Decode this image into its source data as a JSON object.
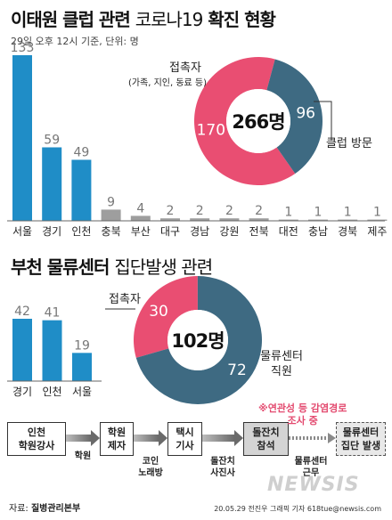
{
  "header": {
    "title_bold": "이태원 클럽 관련",
    "title_light": "코로나19",
    "title_bold2": "확진 현황",
    "subtitle": "29일 오후 12시 기준, 단위: 명"
  },
  "chart_data": [
    {
      "type": "bar",
      "categories": [
        "서울",
        "경기",
        "인천",
        "충북",
        "부산",
        "대구",
        "경남",
        "강원",
        "전북",
        "대전",
        "충남",
        "경북",
        "제주"
      ],
      "values": [
        133,
        59,
        49,
        9,
        4,
        2,
        2,
        2,
        2,
        1,
        1,
        1,
        1
      ],
      "highlight_count": 3,
      "colors": {
        "highlight": "#1f8dc7",
        "other": "#9e9e9e"
      }
    },
    {
      "type": "pie",
      "total_label": "266명",
      "slices": [
        {
          "label": "접촉자",
          "sub_label": "(가족, 지인, 동료 등)",
          "value": 170,
          "color": "#e94e72"
        },
        {
          "label": "클럽 방문",
          "value": 96,
          "color": "#3e6a82"
        }
      ]
    },
    {
      "type": "bar",
      "categories": [
        "경기",
        "인천",
        "서울"
      ],
      "values": [
        42,
        41,
        19
      ],
      "color": "#1f8dc7"
    },
    {
      "type": "pie",
      "total_label": "102명",
      "slices": [
        {
          "label": "접촉자",
          "value": 30,
          "color": "#e94e72"
        },
        {
          "label": "물류센터\n직원",
          "value": 72,
          "color": "#3e6a82"
        }
      ]
    }
  ],
  "section2": {
    "title_bold": "부천 물류센터",
    "title_light": "집단발생 관련"
  },
  "flow": {
    "boxes": [
      {
        "text": "인천\n학원강사"
      },
      {
        "text": "학원\n제자"
      },
      {
        "text": "택시\n기사"
      },
      {
        "text": "돌잔치\n참석"
      },
      {
        "text": "물류센터\n집단 발생"
      }
    ],
    "labels": [
      "학원",
      "코인\n노래방",
      "돌잔치\n사진사",
      "물류센터\n근무"
    ],
    "note": "※연관성 등 감염경로\n조사 중"
  },
  "footer": {
    "source_prefix": "자료: ",
    "source": "질병관리본부",
    "credit": "20.05.29 전진우 그래픽 기자 618tue@newsis.com",
    "watermark": "NEWSIS"
  }
}
